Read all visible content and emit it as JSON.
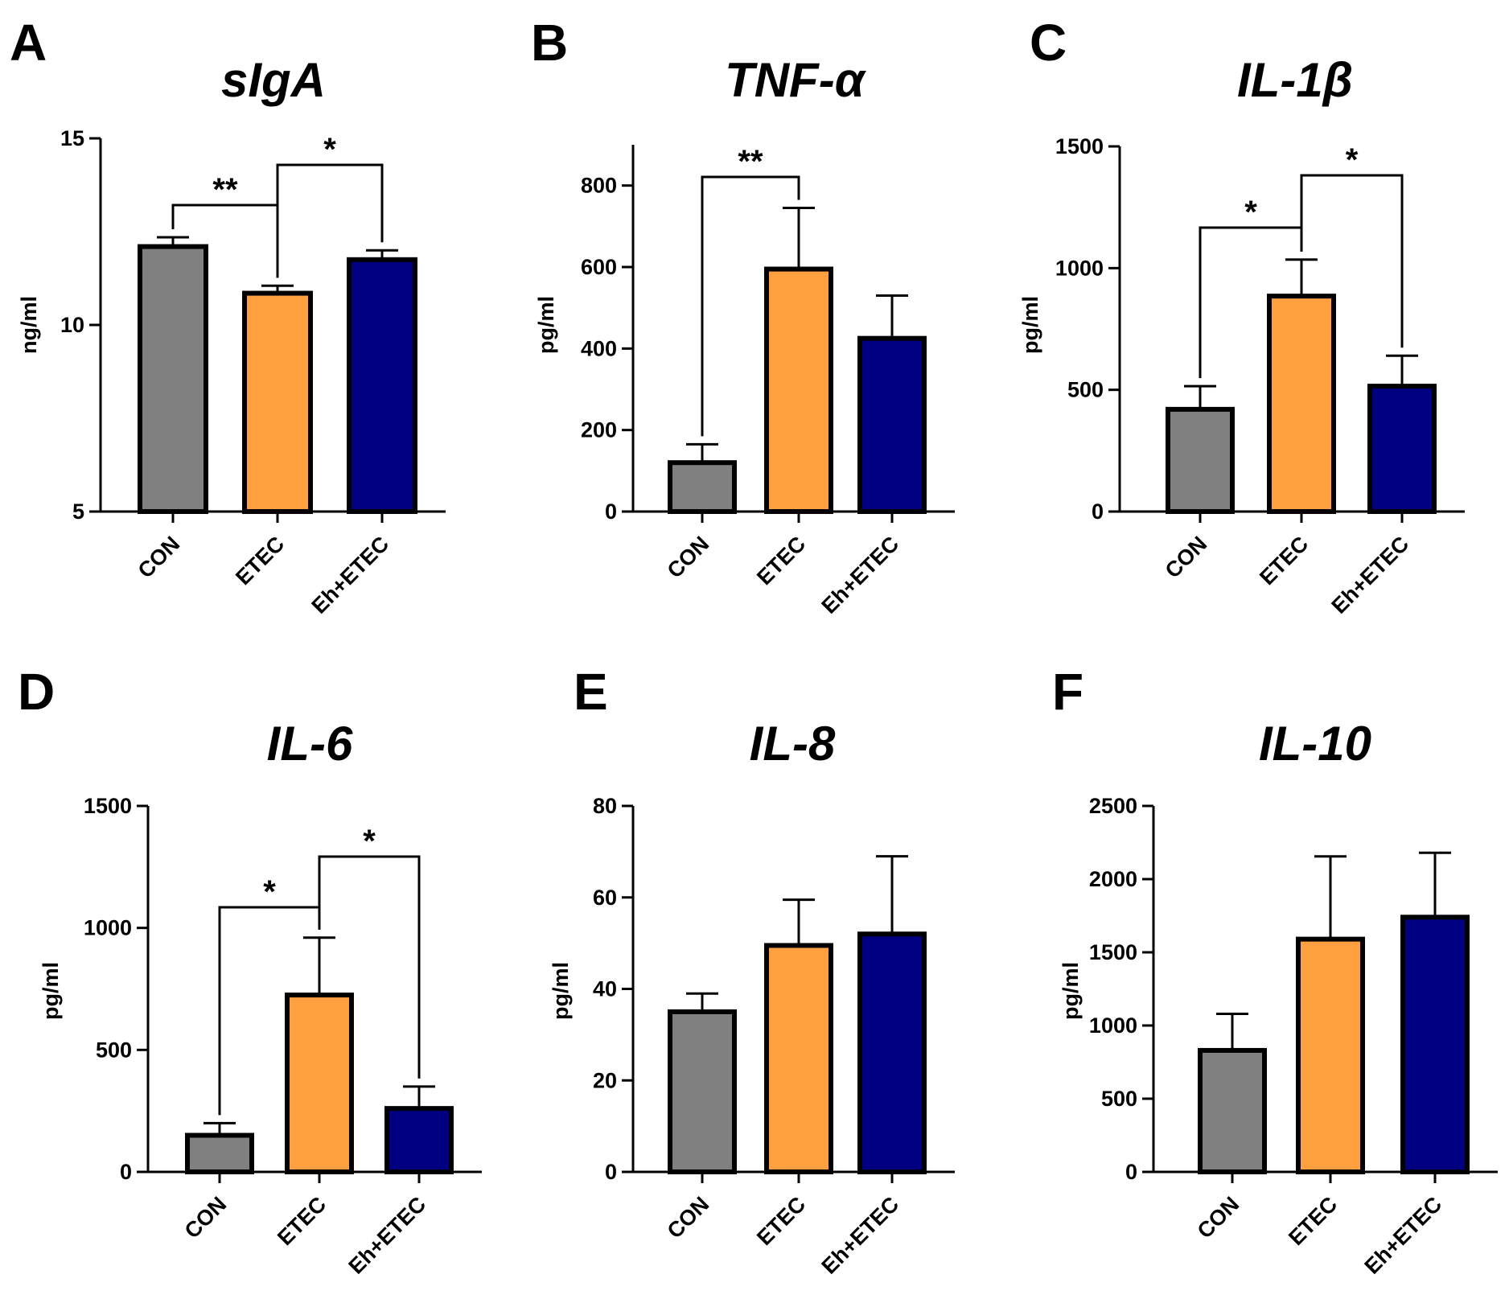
{
  "colors": {
    "CON": "#808080",
    "ETEC": "#FFA040",
    "Eh+ETEC": "#000080",
    "outline": "#000000"
  },
  "chart_data": [
    {
      "panel": "A",
      "type": "bar",
      "title": "sIgA",
      "ylabel": "ng/ml",
      "categories": [
        "CON",
        "ETEC",
        "Eh+ETEC"
      ],
      "values": [
        12.1,
        10.85,
        11.75
      ],
      "errors": [
        0.25,
        0.2,
        0.25
      ],
      "ylim": [
        5,
        15
      ],
      "yticks": [
        5,
        10,
        15
      ],
      "significance": [
        {
          "from": 0,
          "to": 1,
          "label": "**"
        },
        {
          "from": 1,
          "to": 2,
          "label": "*"
        }
      ]
    },
    {
      "panel": "B",
      "type": "bar",
      "title": "TNF-α",
      "ylabel": "pg/ml",
      "categories": [
        "CON",
        "ETEC",
        "Eh+ETEC"
      ],
      "values": [
        120,
        595,
        425
      ],
      "errors": [
        45,
        150,
        105
      ],
      "ylim": [
        0,
        900
      ],
      "yticks": [
        0,
        200,
        400,
        600,
        800
      ],
      "significance": [
        {
          "from": 0,
          "to": 1,
          "label": "**"
        }
      ]
    },
    {
      "panel": "C",
      "type": "bar",
      "title": "IL-1β",
      "ylabel": "pg/ml",
      "categories": [
        "CON",
        "ETEC",
        "Eh+ETEC"
      ],
      "values": [
        420,
        885,
        515
      ],
      "errors": [
        95,
        150,
        125
      ],
      "ylim": [
        0,
        1500
      ],
      "yticks": [
        0,
        500,
        1000,
        1500
      ],
      "significance": [
        {
          "from": 0,
          "to": 1,
          "label": "*"
        },
        {
          "from": 1,
          "to": 2,
          "label": "*"
        }
      ]
    },
    {
      "panel": "D",
      "type": "bar",
      "title": "IL-6",
      "ylabel": "pg/ml",
      "categories": [
        "CON",
        "ETEC",
        "Eh+ETEC"
      ],
      "values": [
        150,
        725,
        260
      ],
      "errors": [
        50,
        235,
        90
      ],
      "ylim": [
        0,
        1500
      ],
      "yticks": [
        0,
        500,
        1000,
        1500
      ],
      "significance": [
        {
          "from": 0,
          "to": 1,
          "label": "*"
        },
        {
          "from": 1,
          "to": 2,
          "label": "*"
        }
      ]
    },
    {
      "panel": "E",
      "type": "bar",
      "title": "IL-8",
      "ylabel": "pg/ml",
      "categories": [
        "CON",
        "ETEC",
        "Eh+ETEC"
      ],
      "values": [
        35,
        49.5,
        52
      ],
      "errors": [
        4,
        10,
        17
      ],
      "ylim": [
        0,
        80
      ],
      "yticks": [
        0,
        20,
        40,
        60,
        80
      ],
      "significance": []
    },
    {
      "panel": "F",
      "type": "bar",
      "title": "IL-10",
      "ylabel": "pg/ml",
      "categories": [
        "CON",
        "ETEC",
        "Eh+ETEC"
      ],
      "values": [
        830,
        1590,
        1740
      ],
      "errors": [
        250,
        565,
        440
      ],
      "ylim": [
        0,
        2500
      ],
      "yticks": [
        0,
        500,
        1000,
        1500,
        2000,
        2500
      ],
      "significance": []
    }
  ]
}
